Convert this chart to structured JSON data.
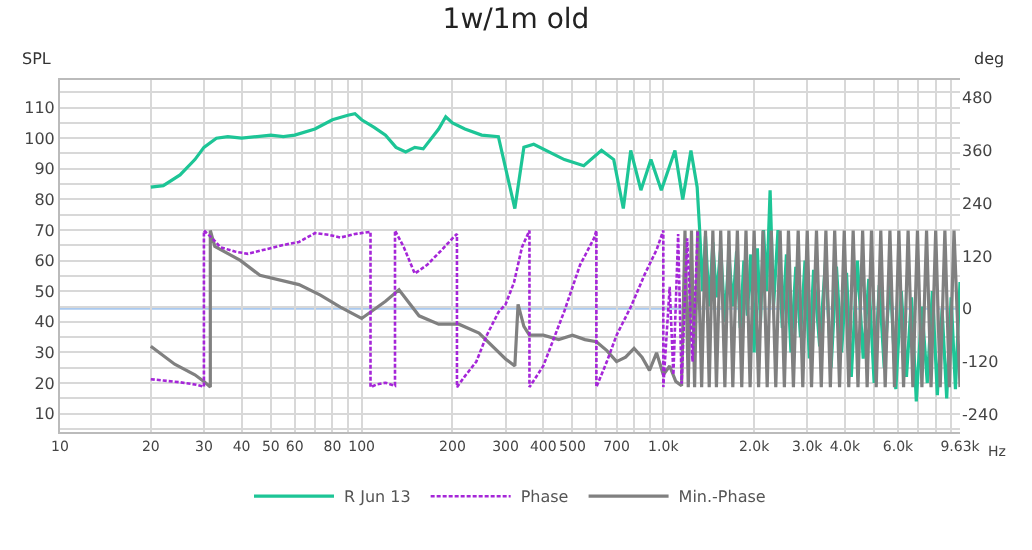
{
  "chart_data": {
    "type": "line",
    "title": "1w/1m old",
    "ylabel": "SPL",
    "y2label": "deg",
    "log": "x",
    "grid": true,
    "legend": "bottom",
    "xlim": [
      10,
      9630
    ],
    "xticks": [
      10,
      20,
      30,
      40,
      50,
      60,
      {
        "value": 70,
        "label": null
      },
      80,
      {
        "value": 90,
        "label": null
      },
      100,
      200,
      300,
      400,
      500,
      {
        "value": 600,
        "label": null
      },
      700,
      {
        "value": 800,
        "label": null
      },
      {
        "value": 900,
        "label": null
      },
      {
        "value": 1000,
        "label": "1.0k"
      },
      {
        "value": 2000,
        "label": "2.0k"
      },
      {
        "value": 3000,
        "label": "3.0k"
      },
      {
        "value": 4000,
        "label": "4.0k"
      },
      {
        "value": 5000,
        "label": null
      },
      {
        "value": 6000,
        "label": "6.0k"
      },
      {
        "value": 7000,
        "label": null
      },
      {
        "value": 8000,
        "label": null
      },
      {
        "value": 9000,
        "label": null
      },
      {
        "value": 9630,
        "label": "9.63k"
      }
    ],
    "xlabel": "Hz",
    "ylim": [
      4,
      119
    ],
    "yticks": [
      {
        "value": 5,
        "label": null
      },
      10,
      {
        "value": 15,
        "label": null
      },
      20,
      {
        "value": 25,
        "label": null
      },
      30,
      {
        "value": 35,
        "label": null
      },
      40,
      {
        "value": 45,
        "label": null
      },
      50,
      {
        "value": 55,
        "label": null
      },
      60,
      {
        "value": 65,
        "label": null
      },
      70,
      {
        "value": 75,
        "label": null
      },
      80,
      {
        "value": 85,
        "label": null
      },
      90,
      {
        "value": 95,
        "label": null
      },
      100,
      {
        "value": 105,
        "label": null
      },
      110,
      {
        "value": 115,
        "label": null
      }
    ],
    "y2lim": [
      -280,
      520
    ],
    "y2ticks": [
      -240,
      -120,
      0,
      120,
      240,
      360,
      480
    ],
    "ref_lines": [
      {
        "axis": "y2",
        "value": 0,
        "color": "#a9c9ef"
      }
    ],
    "series": [
      {
        "name": "R Jun 13",
        "color": "#1dc596",
        "line_style": "solid",
        "x": [
          20,
          22,
          25,
          28,
          30,
          33,
          36,
          40,
          45,
          50,
          55,
          60,
          70,
          80,
          90,
          95,
          100,
          110,
          120,
          130,
          140,
          150,
          160,
          180,
          190,
          200,
          220,
          250,
          284,
          322,
          345,
          372,
          470,
          545,
          624,
          685,
          737,
          780,
          843,
          910,
          985,
          1093,
          1160,
          1235,
          1295,
          1320,
          1350,
          1380,
          1420,
          1460,
          1500,
          1550,
          1600,
          1650,
          1700,
          1750,
          1800,
          1850,
          1900,
          1950,
          2000,
          2050,
          2100,
          2150,
          2200,
          2260,
          2320,
          2400,
          2480,
          2560,
          2650,
          2750,
          2850,
          2950,
          3050,
          3150,
          3300,
          3450,
          3600,
          3750,
          3900,
          4050,
          4200,
          4400,
          4600,
          4800,
          5000,
          5200,
          5400,
          5650,
          5900,
          6150,
          6400,
          6650,
          6900,
          7200,
          7500,
          7800,
          8100,
          8400,
          8700,
          9000,
          9300,
          9630
        ],
        "values": [
          84,
          84.5,
          88,
          93,
          97,
          100,
          100.5,
          100,
          100.5,
          101,
          100.5,
          101,
          103,
          106,
          107.5,
          108,
          106,
          103.5,
          101,
          97,
          95.5,
          97,
          96.5,
          103,
          107,
          105,
          103,
          101,
          100.5,
          77,
          97,
          98,
          93,
          91,
          96,
          93,
          77,
          96,
          83,
          93,
          83,
          96,
          80,
          96,
          84,
          70,
          50,
          68,
          45,
          66,
          48,
          64,
          40,
          62,
          45,
          63,
          38,
          60,
          42,
          62,
          30,
          64,
          40,
          70,
          50,
          83,
          45,
          70,
          38,
          62,
          30,
          58,
          35,
          60,
          28,
          57,
          32,
          60,
          25,
          58,
          30,
          56,
          22,
          60,
          28,
          54,
          20,
          52,
          25,
          55,
          18,
          50,
          22,
          48,
          14,
          45,
          20,
          50,
          16,
          44,
          15,
          48,
          18,
          53
        ]
      },
      {
        "name": "Phase",
        "color": "#a526d8",
        "axis": "y2",
        "line_style": "dotted",
        "x": [
          20,
          22,
          25,
          28,
          30,
          30,
          32,
          34,
          38,
          42,
          48,
          55,
          62,
          70,
          78,
          85,
          95,
          107,
          107,
          112,
          120,
          129,
          129,
          138,
          150,
          165,
          185,
          200,
          207,
          207,
          220,
          240,
          260,
          284,
          300,
          320,
          340,
          360,
          360,
          400,
          470,
          530,
          590,
          600,
          600,
          650,
          700,
          780,
          870,
          950,
          1000,
          1000,
          1050,
          1080,
          1120,
          1150,
          1200,
          1250,
          1300
        ],
        "values": [
          -160,
          -163,
          -167,
          -172,
          -177,
          178,
          160,
          140,
          130,
          125,
          135,
          145,
          152,
          172,
          168,
          162,
          170,
          175,
          -178,
          -172,
          -168,
          -175,
          178,
          140,
          80,
          100,
          135,
          160,
          170,
          -178,
          -153,
          -120,
          -60,
          -8,
          10,
          60,
          140,
          178,
          -178,
          -130,
          -5,
          100,
          161,
          178,
          -178,
          -120,
          -60,
          4,
          80,
          134,
          178,
          -178,
          50,
          -150,
          170,
          -170,
          160,
          -120,
          175
        ]
      },
      {
        "name": "Min.-Phase",
        "color": "#808080",
        "axis": "y2",
        "line_style": "solid",
        "x": [
          20,
          24,
          28,
          30,
          31.5,
          31.5,
          32.6,
          39.6,
          46,
          62,
          73,
          85,
          100,
          120,
          133,
          155,
          180,
          210,
          245,
          300,
          322,
          330,
          345,
          360,
          400,
          450,
          500,
          550,
          600,
          650,
          700,
          750,
          800,
          850,
          900,
          950,
          1000,
          1050,
          1100,
          1150,
          1180,
          1210,
          1240,
          1270,
          1300,
          1340,
          1380,
          1420,
          1460,
          1500,
          1550,
          1600,
          1650,
          1700,
          1760,
          1820,
          1880,
          1940,
          2000,
          2070,
          2140,
          2210,
          2280,
          2360,
          2440,
          2520,
          2600,
          2700,
          2800,
          2900,
          3000,
          3100,
          3220,
          3340,
          3460,
          3580,
          3700,
          3840,
          3980,
          4120,
          4260,
          4420,
          4580,
          4740,
          4900,
          5080,
          5260,
          5440,
          5640,
          5840,
          6040,
          6260,
          6480,
          6720,
          6960,
          7200,
          7460,
          7720,
          8000,
          8280,
          8580,
          8880,
          9200,
          9630
        ],
        "values": [
          -85,
          -126,
          -150,
          -165,
          -178,
          178,
          142,
          110,
          76,
          55,
          31,
          4,
          -22,
          17,
          43,
          -16,
          -35,
          -35,
          -55,
          -114,
          -130,
          10,
          -40,
          -60,
          -60,
          -70,
          -60,
          -70,
          -75,
          -95,
          -120,
          -110,
          -90,
          -110,
          -140,
          -100,
          -150,
          -130,
          -165,
          -175,
          178,
          -178,
          178,
          -178,
          178,
          -178,
          178,
          -178,
          178,
          -178,
          178,
          -178,
          178,
          -178,
          178,
          -178,
          178,
          -178,
          178,
          -178,
          178,
          -178,
          178,
          -178,
          178,
          -178,
          178,
          -178,
          178,
          -178,
          178,
          -178,
          178,
          -178,
          178,
          -178,
          178,
          -178,
          178,
          -178,
          178,
          -178,
          178,
          -178,
          178,
          -178,
          178,
          -178,
          178,
          -178,
          178,
          -178,
          178,
          -178,
          178,
          -178,
          178,
          -178,
          178,
          -178,
          178,
          -178,
          178,
          -178
        ]
      }
    ]
  }
}
